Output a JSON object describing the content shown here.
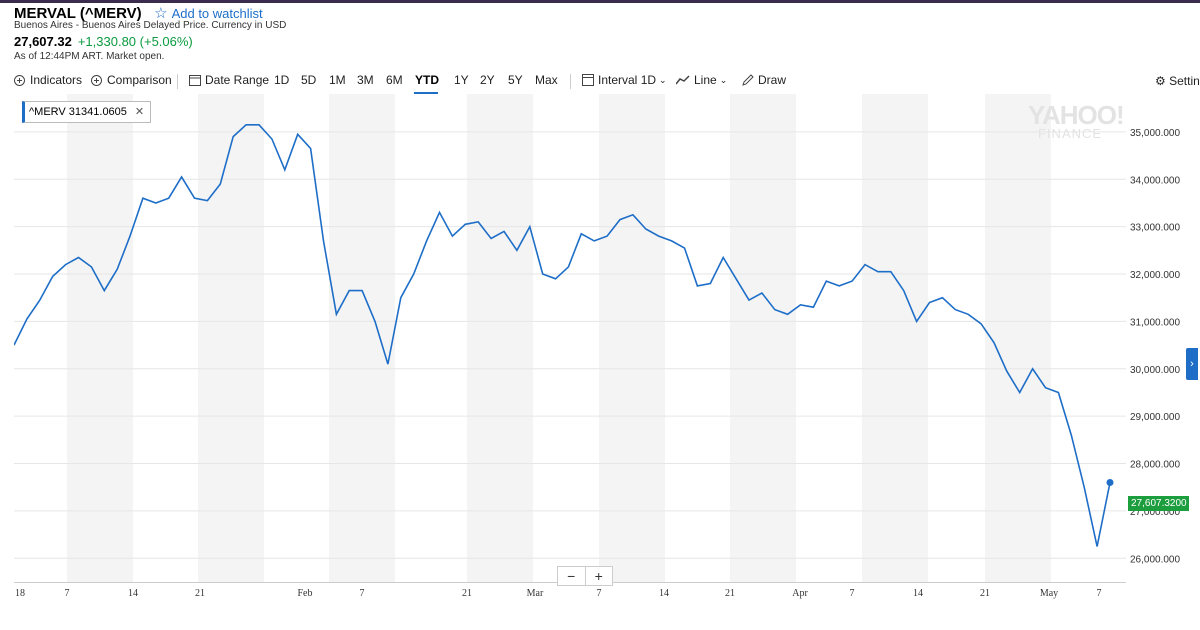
{
  "header": {
    "title": "MERVAL (^MERV)",
    "watchlist_label": "Add to watchlist",
    "subtitle": "Buenos Aires - Buenos Aires Delayed Price. Currency in USD",
    "price": "27,607.32",
    "change": "+1,330.80 (+5.06%)",
    "as_of": "As of 12:44PM ART. Market open."
  },
  "toolbar": {
    "indicators": "Indicators",
    "comparison": "Comparison",
    "date_range": "Date Range",
    "ranges": [
      "1D",
      "5D",
      "1M",
      "3M",
      "6M",
      "YTD",
      "1Y",
      "2Y",
      "5Y",
      "Max"
    ],
    "active_range": "YTD",
    "interval": "Interval",
    "interval_value": "1D",
    "chart_type": "Line",
    "draw": "Draw",
    "settings": "Settin"
  },
  "legend_tag": "^MERV 31341.0605",
  "legend_close": "✕",
  "last_value_label": "27,607.3200",
  "watermark": {
    "line1": "YAHOO!",
    "line2": "FINANCE"
  },
  "zoom": {
    "minus": "−",
    "plus": "+"
  },
  "nav_arrow": "›",
  "colors": {
    "line": "#1e6ec8",
    "last_box": "#1c9e3e",
    "accent": "#1e6ec8",
    "change": "#0a9b3f"
  },
  "chart_data": {
    "type": "line",
    "title": "",
    "xlabel": "",
    "ylabel": "",
    "ylim": [
      25500,
      35800
    ],
    "y_ticks": [
      "35,000.000",
      "34,000.000",
      "33,000.000",
      "32,000.000",
      "31,000.000",
      "30,000.000",
      "29,000.000",
      "28,000.000",
      "27,000.000",
      "26,000.000"
    ],
    "y_tick_values": [
      35000,
      34000,
      33000,
      32000,
      31000,
      30000,
      29000,
      28000,
      27000,
      26000
    ],
    "x_tick_labels": [
      "18",
      "7",
      "14",
      "21",
      "Feb",
      "7",
      "21",
      "Mar",
      "7",
      "14",
      "21",
      "Apr",
      "7",
      "14",
      "21",
      "May",
      "7"
    ],
    "series": [
      {
        "values": [
          30500,
          31050,
          31450,
          31950,
          32200,
          32350,
          32150,
          31650,
          32100,
          32800,
          33600,
          33500,
          33600,
          34050,
          33600,
          33550,
          33900,
          34900,
          35150,
          35150,
          34850,
          34200,
          34950,
          34650,
          32700,
          31150,
          31650,
          31650,
          31000,
          30100,
          31500,
          32000,
          32700,
          33300,
          32800,
          33050,
          33100,
          32750,
          32900,
          32500,
          33000,
          32000,
          31900,
          32150,
          32850,
          32700,
          32800,
          33150,
          33250,
          32950,
          32800,
          32700,
          32550,
          31750,
          31800,
          32350,
          31900,
          31450,
          31600,
          31250,
          31150,
          31350,
          31300,
          31850,
          31750,
          31850,
          32200,
          32050,
          32050,
          31650,
          31000,
          31400,
          31500,
          31250,
          31150,
          30950,
          30550,
          29950,
          29500,
          30000,
          29600,
          29500,
          28600,
          27500,
          26250,
          27600
        ]
      }
    ]
  }
}
